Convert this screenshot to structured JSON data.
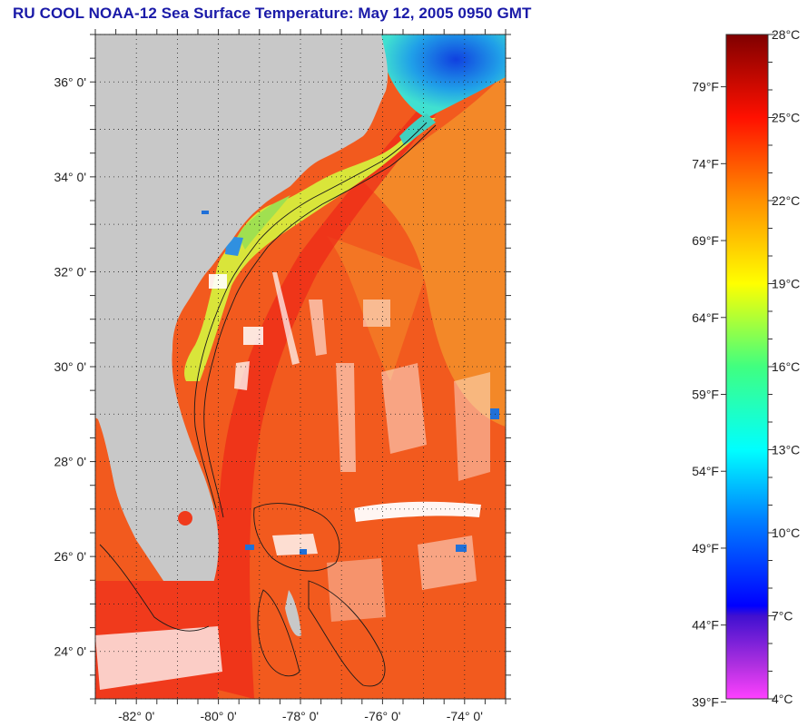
{
  "title": "RU COOL  NOAA-12  Sea Surface Temperature:  May 12, 2005 0950 GMT",
  "map": {
    "lon_range": [
      -83.0,
      -73.0
    ],
    "lat_range": [
      23.0,
      37.0
    ],
    "lat_ticks": [
      {
        "value": 36,
        "label": "36° 0'"
      },
      {
        "value": 34,
        "label": "34° 0'"
      },
      {
        "value": 32,
        "label": "32° 0'"
      },
      {
        "value": 30,
        "label": "30° 0'"
      },
      {
        "value": 28,
        "label": "28° 0'"
      },
      {
        "value": 26,
        "label": "26° 0'"
      },
      {
        "value": 24,
        "label": "24° 0'"
      }
    ],
    "lon_ticks": [
      {
        "value": -82,
        "label": "-82° 0'"
      },
      {
        "value": -80,
        "label": "-80° 0'"
      },
      {
        "value": -78,
        "label": "-78° 0'"
      },
      {
        "value": -76,
        "label": "-76° 0'"
      },
      {
        "value": -74,
        "label": "-74° 0'"
      }
    ],
    "colors": {
      "land": "#c8c8c8",
      "warm_sea": "#f25a1e",
      "hot_sea": "#f0321e",
      "offshore": "#f3912a",
      "shelf": "#e2e63a",
      "cold_north": "#2a8fe0",
      "cloud": "#ffffff",
      "contour": "#1a1a1a"
    }
  },
  "colorbar": {
    "celsius_range": [
      4,
      28
    ],
    "celsius_labels": [
      "28°C",
      "25°C",
      "22°C",
      "19°C",
      "16°C",
      "13°C",
      "10°C",
      "7°C",
      "4°C"
    ],
    "fahrenheit_labels": [
      "79°F",
      "74°F",
      "69°F",
      "64°F",
      "59°F",
      "54°F",
      "49°F",
      "44°F",
      "39°F"
    ],
    "gradient": [
      "#800000",
      "#ff0000",
      "#ff8000",
      "#ffff00",
      "#00ff80",
      "#00ffff",
      "#0000ff",
      "#8000ff",
      "#ff40ff"
    ]
  }
}
